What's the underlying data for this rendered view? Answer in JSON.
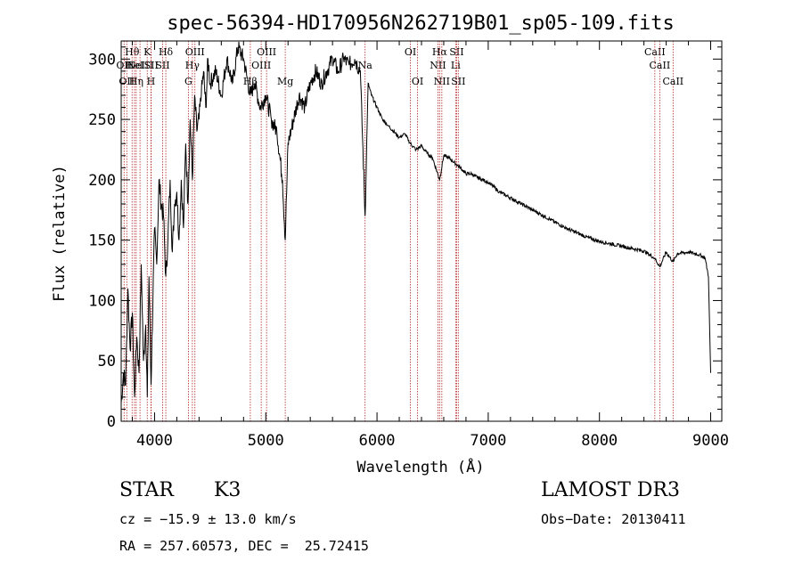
{
  "chart_data": {
    "type": "line",
    "title": "spec-56394-HD170956N262719B01_sp05-109.fits",
    "xlabel": "Wavelength (Å)",
    "ylabel": "Flux (relative)",
    "xlim": [
      3700,
      9100
    ],
    "ylim": [
      0,
      315
    ],
    "xticks": [
      4000,
      5000,
      6000,
      7000,
      8000,
      9000
    ],
    "yticks": [
      0,
      50,
      100,
      150,
      200,
      250,
      300
    ],
    "grid": false,
    "series": [
      {
        "name": "flux",
        "x": [
          3700,
          3720,
          3740,
          3760,
          3780,
          3800,
          3820,
          3840,
          3860,
          3880,
          3900,
          3920,
          3935,
          3950,
          3968,
          3985,
          4000,
          4020,
          4040,
          4060,
          4080,
          4101,
          4120,
          4140,
          4160,
          4180,
          4200,
          4220,
          4240,
          4260,
          4280,
          4300,
          4320,
          4340,
          4360,
          4380,
          4400,
          4420,
          4440,
          4460,
          4480,
          4500,
          4550,
          4600,
          4650,
          4700,
          4750,
          4800,
          4861,
          4900,
          4950,
          5000,
          5050,
          5100,
          5150,
          5175,
          5200,
          5250,
          5300,
          5350,
          5400,
          5450,
          5500,
          5550,
          5600,
          5650,
          5700,
          5750,
          5800,
          5850,
          5893,
          5920,
          5950,
          6000,
          6050,
          6100,
          6150,
          6200,
          6250,
          6300,
          6350,
          6400,
          6450,
          6500,
          6563,
          6600,
          6650,
          6700,
          6750,
          6800,
          6850,
          6900,
          6950,
          7000,
          7100,
          7200,
          7300,
          7400,
          7500,
          7600,
          7700,
          7800,
          7900,
          8000,
          8100,
          8200,
          8300,
          8400,
          8498,
          8542,
          8600,
          8662,
          8700,
          8800,
          8900,
          8950,
          8980,
          9000
        ],
        "y": [
          15,
          40,
          30,
          110,
          60,
          90,
          20,
          70,
          40,
          130,
          50,
          80,
          20,
          120,
          30,
          100,
          160,
          130,
          200,
          180,
          170,
          120,
          150,
          200,
          140,
          180,
          190,
          150,
          200,
          160,
          230,
          180,
          250,
          200,
          270,
          240,
          250,
          270,
          290,
          260,
          300,
          280,
          290,
          270,
          300,
          280,
          310,
          300,
          270,
          280,
          260,
          270,
          250,
          240,
          200,
          150,
          230,
          250,
          270,
          260,
          280,
          290,
          280,
          290,
          300,
          290,
          300,
          295,
          300,
          290,
          170,
          280,
          270,
          260,
          250,
          245,
          240,
          235,
          238,
          230,
          225,
          228,
          222,
          218,
          200,
          220,
          218,
          214,
          210,
          205,
          205,
          202,
          200,
          198,
          190,
          185,
          180,
          175,
          170,
          165,
          160,
          156,
          152,
          149,
          147,
          145,
          143,
          141,
          135,
          128,
          140,
          132,
          139,
          140,
          138,
          135,
          120,
          40
        ]
      }
    ],
    "line_annotations": [
      {
        "wavelength": 3726,
        "label": "OII",
        "row": 2
      },
      {
        "wavelength": 3750,
        "label": "OII",
        "row": 3
      },
      {
        "wavelength": 3798,
        "label": "Hθ",
        "row": 1
      },
      {
        "wavelength": 3820,
        "label": "HeI",
        "row": 2
      },
      {
        "wavelength": 3835,
        "label": "Hη",
        "row": 3
      },
      {
        "wavelength": 3869,
        "label": "NeIII",
        "row": 2
      },
      {
        "wavelength": 3934,
        "label": "K",
        "row": 1
      },
      {
        "wavelength": 3968,
        "label": "H",
        "row": 3
      },
      {
        "wavelength": 3970,
        "label": "SII",
        "row": 2
      },
      {
        "wavelength": 4101,
        "label": "Hδ",
        "row": 1
      },
      {
        "wavelength": 4072,
        "label": "SII",
        "row": 2
      },
      {
        "wavelength": 4304,
        "label": "G",
        "row": 3
      },
      {
        "wavelength": 4340,
        "label": "Hγ",
        "row": 2
      },
      {
        "wavelength": 4363,
        "label": "OIII",
        "row": 1
      },
      {
        "wavelength": 4861,
        "label": "Hβ",
        "row": 3
      },
      {
        "wavelength": 4959,
        "label": "OIII",
        "row": 2
      },
      {
        "wavelength": 5007,
        "label": "OIII",
        "row": 1
      },
      {
        "wavelength": 5175,
        "label": "Mg",
        "row": 3
      },
      {
        "wavelength": 5893,
        "label": "Na",
        "row": 2
      },
      {
        "wavelength": 6300,
        "label": "OI",
        "row": 1
      },
      {
        "wavelength": 6364,
        "label": "OI",
        "row": 3
      },
      {
        "wavelength": 6548,
        "label": "NII",
        "row": 2
      },
      {
        "wavelength": 6563,
        "label": "Hα",
        "row": 1
      },
      {
        "wavelength": 6583,
        "label": "NII",
        "row": 3
      },
      {
        "wavelength": 6707,
        "label": "Li",
        "row": 2
      },
      {
        "wavelength": 6716,
        "label": "SII",
        "row": 1
      },
      {
        "wavelength": 6731,
        "label": "SII",
        "row": 3
      },
      {
        "wavelength": 8498,
        "label": "CaII",
        "row": 1
      },
      {
        "wavelength": 8542,
        "label": "CaII",
        "row": 2
      },
      {
        "wavelength": 8662,
        "label": "CaII",
        "row": 3
      }
    ],
    "annotation_color": "#b22222"
  },
  "info": {
    "object_class": "STAR",
    "subclass": "K3",
    "survey": "LAMOST DR3",
    "redshift": "cz = −15.9 ± 13.0 km/s",
    "obs_date": "Obs−Date: 20130411",
    "coords": "RA = 257.60573, DEC =  25.72415"
  }
}
